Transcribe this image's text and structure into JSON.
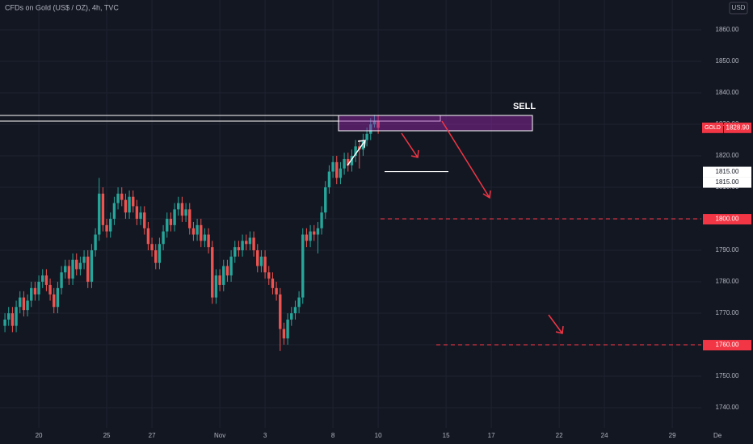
{
  "chart_data": {
    "type": "candlestick",
    "title": "CFDs on Gold (US$ / OZ), 4h, TVC",
    "currency": "USD",
    "up_color": "#26a69a",
    "down_color": "#ef5350",
    "x": [
      -9,
      -8,
      -7,
      -6,
      -5,
      -4,
      -3,
      -2,
      -1,
      0,
      1,
      2,
      3,
      4,
      5,
      6,
      7,
      8,
      9,
      10,
      11,
      12,
      13,
      14,
      15,
      16,
      17,
      18,
      19,
      20,
      21,
      22,
      23,
      24,
      25,
      26,
      27,
      28,
      29,
      30,
      31,
      32,
      33,
      34,
      35,
      36,
      37,
      38,
      39,
      40,
      41,
      42,
      43,
      44,
      45,
      46,
      47,
      48,
      49,
      50,
      51,
      52,
      53,
      54,
      55,
      56,
      57,
      58,
      59,
      60,
      61,
      62,
      63,
      64,
      65,
      66,
      67,
      68,
      69,
      70,
      71,
      72,
      73,
      74,
      75,
      76,
      77,
      78,
      79,
      80,
      81,
      82,
      83,
      84,
      85,
      86,
      87,
      88,
      89,
      90
    ],
    "open": [
      1766,
      1768,
      1770,
      1766,
      1772,
      1775,
      1771,
      1774,
      1778,
      1776,
      1780,
      1782,
      1779,
      1776,
      1772,
      1778,
      1783,
      1785,
      1781,
      1787,
      1784,
      1786,
      1788,
      1780,
      1790,
      1795,
      1808,
      1798,
      1796,
      1800,
      1805,
      1808,
      1806,
      1802,
      1807,
      1804,
      1800,
      1802,
      1797,
      1792,
      1790,
      1786,
      1792,
      1796,
      1800,
      1798,
      1803,
      1805,
      1801,
      1803,
      1797,
      1795,
      1798,
      1793,
      1795,
      1791,
      1775,
      1782,
      1779,
      1785,
      1782,
      1788,
      1791,
      1790,
      1793,
      1792,
      1794,
      1790,
      1785,
      1788,
      1783,
      1781,
      1778,
      1776,
      1765,
      1762,
      1768,
      1770,
      1772,
      1775,
      1795,
      1793,
      1796,
      1795,
      1797,
      1802,
      1810,
      1815,
      1818,
      1813,
      1816,
      1819,
      1817,
      1820,
      1823,
      1822,
      1825,
      1827,
      1830,
      1831
    ],
    "high": [
      1770,
      1772,
      1772,
      1774,
      1777,
      1777,
      1776,
      1780,
      1780,
      1782,
      1784,
      1784,
      1781,
      1778,
      1780,
      1785,
      1787,
      1787,
      1789,
      1789,
      1788,
      1790,
      1790,
      1792,
      1797,
      1813,
      1810,
      1800,
      1802,
      1807,
      1810,
      1810,
      1808,
      1809,
      1809,
      1806,
      1804,
      1804,
      1799,
      1794,
      1792,
      1794,
      1798,
      1802,
      1802,
      1805,
      1807,
      1807,
      1805,
      1805,
      1799,
      1800,
      1800,
      1797,
      1797,
      1793,
      1784,
      1784,
      1787,
      1787,
      1790,
      1793,
      1793,
      1795,
      1795,
      1796,
      1796,
      1792,
      1790,
      1790,
      1785,
      1783,
      1780,
      1778,
      1767,
      1770,
      1772,
      1774,
      1777,
      1797,
      1797,
      1798,
      1798,
      1799,
      1804,
      1812,
      1817,
      1820,
      1820,
      1818,
      1821,
      1821,
      1822,
      1825,
      1825,
      1827,
      1829,
      1832,
      1833,
      1833
    ],
    "low": [
      1764,
      1766,
      1764,
      1764,
      1770,
      1769,
      1769,
      1772,
      1774,
      1774,
      1778,
      1777,
      1774,
      1770,
      1770,
      1776,
      1781,
      1779,
      1779,
      1782,
      1782,
      1784,
      1778,
      1778,
      1788,
      1793,
      1796,
      1794,
      1794,
      1798,
      1803,
      1804,
      1800,
      1800,
      1802,
      1798,
      1798,
      1795,
      1790,
      1788,
      1784,
      1784,
      1790,
      1794,
      1796,
      1796,
      1801,
      1799,
      1799,
      1795,
      1793,
      1793,
      1791,
      1791,
      1789,
      1773,
      1773,
      1777,
      1777,
      1780,
      1780,
      1786,
      1788,
      1788,
      1790,
      1790,
      1788,
      1783,
      1783,
      1781,
      1779,
      1776,
      1774,
      1758,
      1760,
      1760,
      1766,
      1768,
      1770,
      1773,
      1791,
      1791,
      1793,
      1789,
      1795,
      1800,
      1808,
      1813,
      1811,
      1811,
      1814,
      1815,
      1815,
      1818,
      1816,
      1820,
      1823,
      1825,
      1829,
      1827
    ],
    "close": [
      1768,
      1770,
      1766,
      1772,
      1775,
      1771,
      1774,
      1778,
      1776,
      1780,
      1782,
      1779,
      1776,
      1772,
      1778,
      1783,
      1785,
      1781,
      1787,
      1784,
      1786,
      1788,
      1780,
      1790,
      1795,
      1808,
      1798,
      1796,
      1800,
      1805,
      1808,
      1806,
      1802,
      1807,
      1804,
      1800,
      1802,
      1797,
      1792,
      1790,
      1786,
      1792,
      1796,
      1800,
      1798,
      1803,
      1805,
      1801,
      1803,
      1797,
      1795,
      1798,
      1793,
      1795,
      1791,
      1775,
      1782,
      1779,
      1785,
      1782,
      1788,
      1791,
      1790,
      1793,
      1792,
      1794,
      1790,
      1785,
      1788,
      1783,
      1781,
      1778,
      1776,
      1765,
      1762,
      1768,
      1770,
      1772,
      1775,
      1795,
      1793,
      1796,
      1795,
      1797,
      1802,
      1810,
      1815,
      1818,
      1813,
      1816,
      1819,
      1817,
      1820,
      1823,
      1822,
      1825,
      1827,
      1830,
      1831,
      1828.9
    ],
    "xlim": [
      -10.3,
      189.4
    ],
    "xticks": [
      {
        "value": 0,
        "label": "20"
      },
      {
        "value": 18,
        "label": "25"
      },
      {
        "value": 30,
        "label": "27"
      },
      {
        "value": 48,
        "label": "Nov"
      },
      {
        "value": 60,
        "label": "3"
      },
      {
        "value": 78,
        "label": "8"
      },
      {
        "value": 90,
        "label": "10"
      },
      {
        "value": 108,
        "label": "15"
      },
      {
        "value": 120,
        "label": "17"
      },
      {
        "value": 138,
        "label": "22"
      },
      {
        "value": 150,
        "label": "24"
      },
      {
        "value": 168,
        "label": "29"
      },
      {
        "value": 180,
        "label": "De"
      }
    ],
    "ylim": [
      1733.6,
      1869.5
    ],
    "yticks": [
      {
        "value": 1740,
        "label": "1740.00"
      },
      {
        "value": 1750,
        "label": "1750.00"
      },
      {
        "value": 1760,
        "label": "1760.00"
      },
      {
        "value": 1770,
        "label": "1770.00"
      },
      {
        "value": 1780,
        "label": "1780.00"
      },
      {
        "value": 1790,
        "label": "1790.00"
      },
      {
        "value": 1800,
        "label": "1800.00"
      },
      {
        "value": 1810,
        "label": "1810.00"
      },
      {
        "value": 1820,
        "label": "1820.00"
      },
      {
        "value": 1830,
        "label": "1830.00"
      },
      {
        "value": 1840,
        "label": "1840.00"
      },
      {
        "value": 1850,
        "label": "1850.00"
      },
      {
        "value": 1860,
        "label": "1860.00"
      }
    ],
    "grid": true,
    "price_lines": [
      {
        "value": 1815,
        "label": "1815.00",
        "color": "#ffffff"
      },
      {
        "value": 1815,
        "label": "1815.00",
        "color": "#ffffff"
      },
      {
        "value": 1800,
        "label": "1800.00",
        "color": "#f23645"
      },
      {
        "value": 1760,
        "label": "1760.00",
        "color": "#f23645"
      }
    ],
    "last_price": {
      "name": "GOLD",
      "value": 1828.9,
      "label": "1828.90",
      "color": "#f23645"
    },
    "annotation": "SELL"
  }
}
